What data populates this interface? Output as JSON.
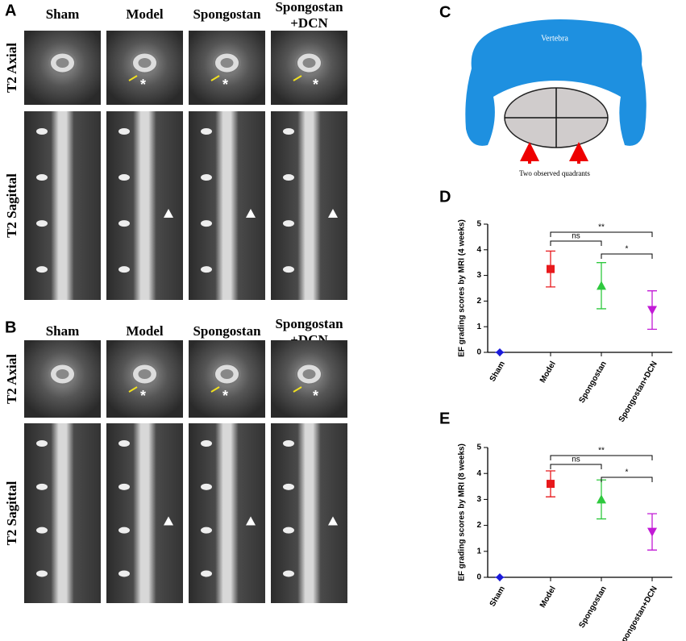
{
  "mri_panels": [
    {
      "label": "A",
      "columns": [
        [
          "Sham"
        ],
        [
          "Model"
        ],
        [
          "Spongostan"
        ],
        [
          "Spongostan",
          "+DCN"
        ]
      ],
      "rows": [
        "T2 Axial",
        "T2 Sagittal"
      ],
      "asterisk": "*"
    },
    {
      "label": "B",
      "columns": [
        [
          "Sham"
        ],
        [
          "Model"
        ],
        [
          "Spongostan"
        ],
        [
          "Spongostan",
          "+DCN"
        ]
      ],
      "rows": [
        "T2 Axial",
        "T2 Sagittal"
      ],
      "asterisk": "*"
    }
  ],
  "diagram": {
    "label": "C",
    "vertebra": "Vertebra",
    "caption": "Two observed quadrants"
  },
  "chart_data": [
    {
      "type": "errorbar",
      "label": "D",
      "y_label": "EF grading scores by MRI (4 weeks)",
      "categories": [
        "Sham",
        "Model",
        "Spongostan",
        "Spongostan+DCN"
      ],
      "values": [
        0,
        3.25,
        2.6,
        1.65
      ],
      "errors": [
        0,
        0.7,
        0.9,
        0.75
      ],
      "colors": [
        "#1a1adb",
        "#e8191c",
        "#2ec93e",
        "#c21ad6"
      ],
      "ylim": [
        0,
        5
      ],
      "yticks": [
        0,
        1,
        2,
        3,
        4,
        5
      ],
      "annotations": [
        "**",
        "ns",
        "*"
      ]
    },
    {
      "type": "errorbar",
      "label": "E",
      "y_label": "EF grading scores by MRI (8 weeks)",
      "categories": [
        "Sham",
        "Model",
        "Spongostan",
        "Spongostan+DCN"
      ],
      "values": [
        0,
        3.6,
        3.0,
        1.75
      ],
      "errors": [
        0,
        0.5,
        0.75,
        0.7
      ],
      "colors": [
        "#1a1adb",
        "#e8191c",
        "#2ec93e",
        "#c21ad6"
      ],
      "ylim": [
        0,
        5
      ],
      "yticks": [
        0,
        1,
        2,
        3,
        4,
        5
      ],
      "annotations": [
        "**",
        "ns",
        "*"
      ]
    }
  ]
}
